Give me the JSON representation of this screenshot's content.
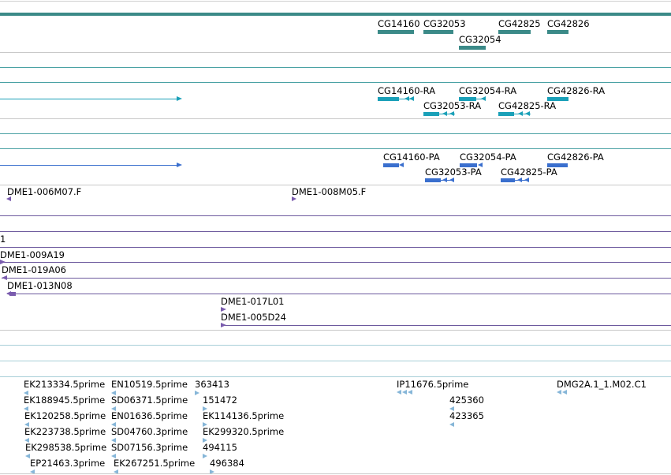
{
  "colors": {
    "gene": "#3b8a88",
    "mrna": "#1aa0b8",
    "protein": "#3a6fce",
    "clone": "#7a5cae",
    "est": "#86b6d8",
    "separator": "#c9c9c9",
    "track_line_teal": "#4aa1a4",
    "track_line_purple": "#6d5a9e",
    "track_line_light": "#a8cfd8"
  },
  "tracks": {
    "genes": [
      "CG14160",
      "CG32053",
      "CG32054",
      "CG42825",
      "CG42826"
    ],
    "transcripts": [
      "CG14160-RA",
      "CG32054-RA",
      "CG42826-RA",
      "CG32053-RA",
      "CG42825-RA"
    ],
    "proteins": [
      "CG14160-PA",
      "CG32054-PA",
      "CG42826-PA",
      "CG32053-PA",
      "CG42825-PA"
    ],
    "clones_end": [
      "DME1-006M07.F",
      "DME1-008M05.F"
    ],
    "clone_partial": "1",
    "clones": [
      "DME1-009A19",
      "DME1-019A06",
      "DME1-013N08",
      "DME1-017L01",
      "DME1-005D24"
    ],
    "ests": [
      "EK213334.5prime",
      "EN10519.5prime",
      "363413",
      "EK188945.5prime",
      "SD06371.5prime",
      "151472",
      "EK120258.5prime",
      "EN01636.5prime",
      "EK114136.5prime",
      "EK223738.5prime",
      "SD04760.3prime",
      "EK299320.5prime",
      "EK298538.5prime",
      "SD07156.3prime",
      "494115",
      "EP21463.3prime",
      "EK267251.5prime",
      "496384",
      "IP11676.5prime",
      "425360",
      "423365",
      "DMG2A.1_1.M02.C1"
    ]
  }
}
